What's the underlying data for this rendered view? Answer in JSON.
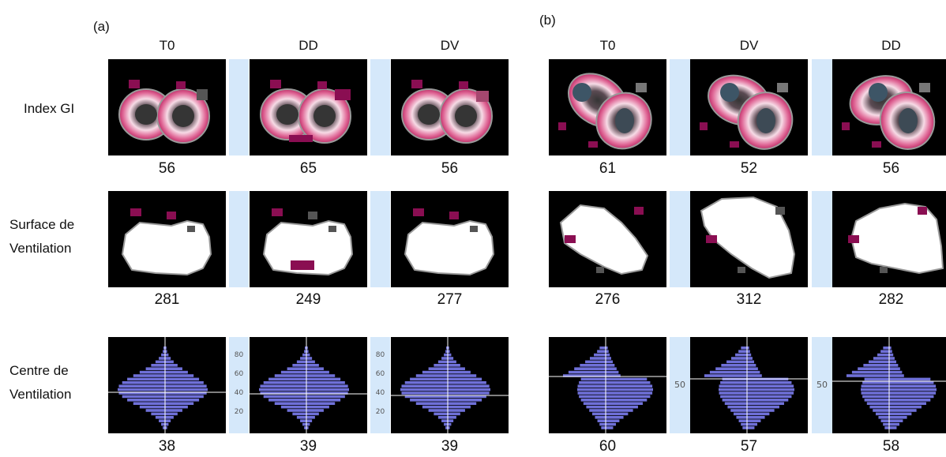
{
  "panels": [
    {
      "label": "(a)",
      "columns": [
        "T0",
        "DD",
        "DV"
      ],
      "rows": [
        {
          "label_lines": [
            "Index GI"
          ],
          "values": [
            "56",
            "65",
            "56"
          ]
        },
        {
          "label_lines": [
            "Surface de",
            "Ventilation"
          ],
          "values": [
            "281",
            "249",
            "277"
          ]
        },
        {
          "label_lines": [
            "Centre de",
            "Ventilation"
          ],
          "values": [
            "38",
            "39",
            "39"
          ]
        }
      ],
      "axis_ticks": [
        "80",
        "60",
        "40",
        "20"
      ]
    },
    {
      "label": "(b)",
      "columns": [
        "T0",
        "DV",
        "DD"
      ],
      "rows": [
        {
          "values": [
            "61",
            "52",
            "56"
          ]
        },
        {
          "values": [
            "276",
            "312",
            "282"
          ]
        },
        {
          "values": [
            "60",
            "57",
            "58"
          ]
        }
      ],
      "axis_ticks": [
        "50"
      ]
    }
  ],
  "colors": {
    "image_background": "#000000",
    "separator": "#d5e8fa",
    "ring_outer": "#c0306a",
    "ring_inner": "#f7dbe6",
    "core": "#353535",
    "spot": "#8a0e52",
    "mask": "#ffffff",
    "mask_border": "#9a9a9a",
    "histogram": "#7b7cf0"
  },
  "icons": [
    "gi-ring-map",
    "ventilation-surface-mask",
    "ventilation-histogram"
  ]
}
